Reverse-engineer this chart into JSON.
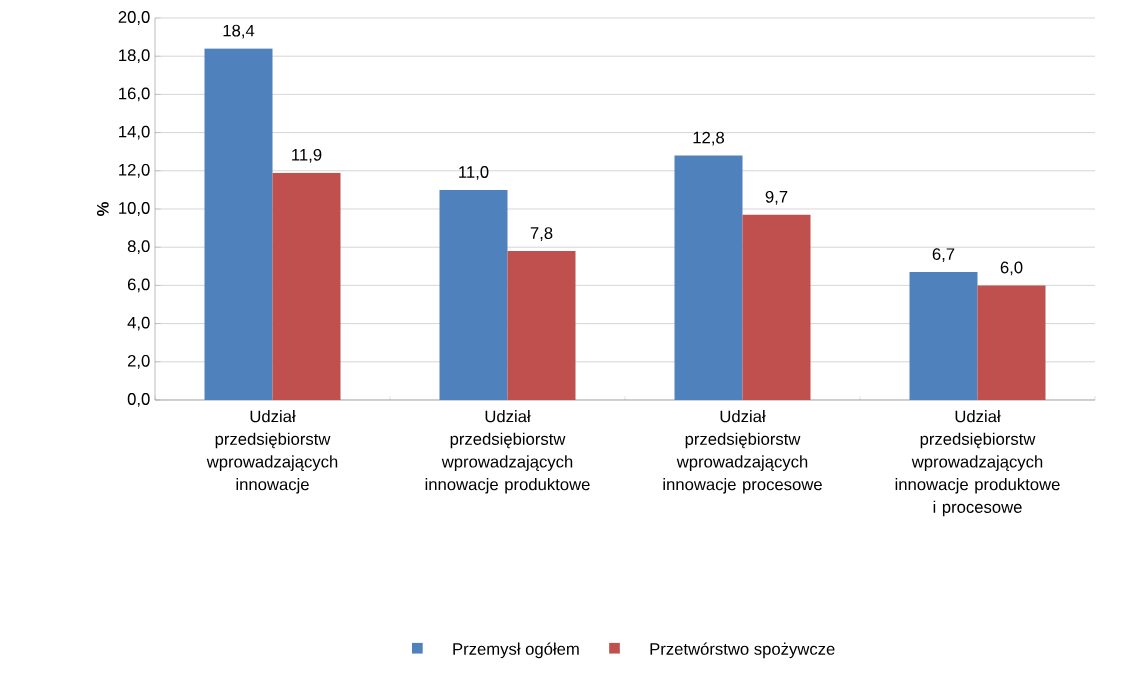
{
  "chart_data": {
    "type": "bar",
    "ylabel": "%",
    "categories": [
      "Udział przedsiębiorstw wprowadzających innowacje",
      "Udział przedsiębiorstw wprowadzających innowacje produktowe",
      "Udział przedsiębiorstw wprowadzających innowacje procesowe",
      "Udział przedsiębiorstw wprowadzających innowacje produktowe i procesowe"
    ],
    "series": [
      {
        "name": "Przemysł ogółem",
        "color": "#4f81bd",
        "values": [
          18.4,
          11.0,
          12.8,
          6.7
        ],
        "value_labels": [
          "18,4",
          "11,0",
          "12,8",
          "6,7"
        ]
      },
      {
        "name": "Przetwórstwo spożywcze",
        "color": "#c0504d",
        "values": [
          11.9,
          7.8,
          9.7,
          6.0
        ],
        "value_labels": [
          "11,9",
          "7,8",
          "9,7",
          "6,0"
        ]
      }
    ],
    "ylim": [
      0,
      20
    ],
    "yticks": [
      {
        "value": 0,
        "label": "0,0"
      },
      {
        "value": 2,
        "label": "2,0"
      },
      {
        "value": 4,
        "label": "4,0"
      },
      {
        "value": 6,
        "label": "6,0"
      },
      {
        "value": 8,
        "label": "8,0"
      },
      {
        "value": 10,
        "label": "10,0"
      },
      {
        "value": 12,
        "label": "12,0"
      },
      {
        "value": 14,
        "label": "14,0"
      },
      {
        "value": 16,
        "label": "16,0"
      },
      {
        "value": 18,
        "label": "18,0"
      },
      {
        "value": 20,
        "label": "20,0"
      }
    ],
    "grid": "y",
    "legend": "bottom"
  }
}
